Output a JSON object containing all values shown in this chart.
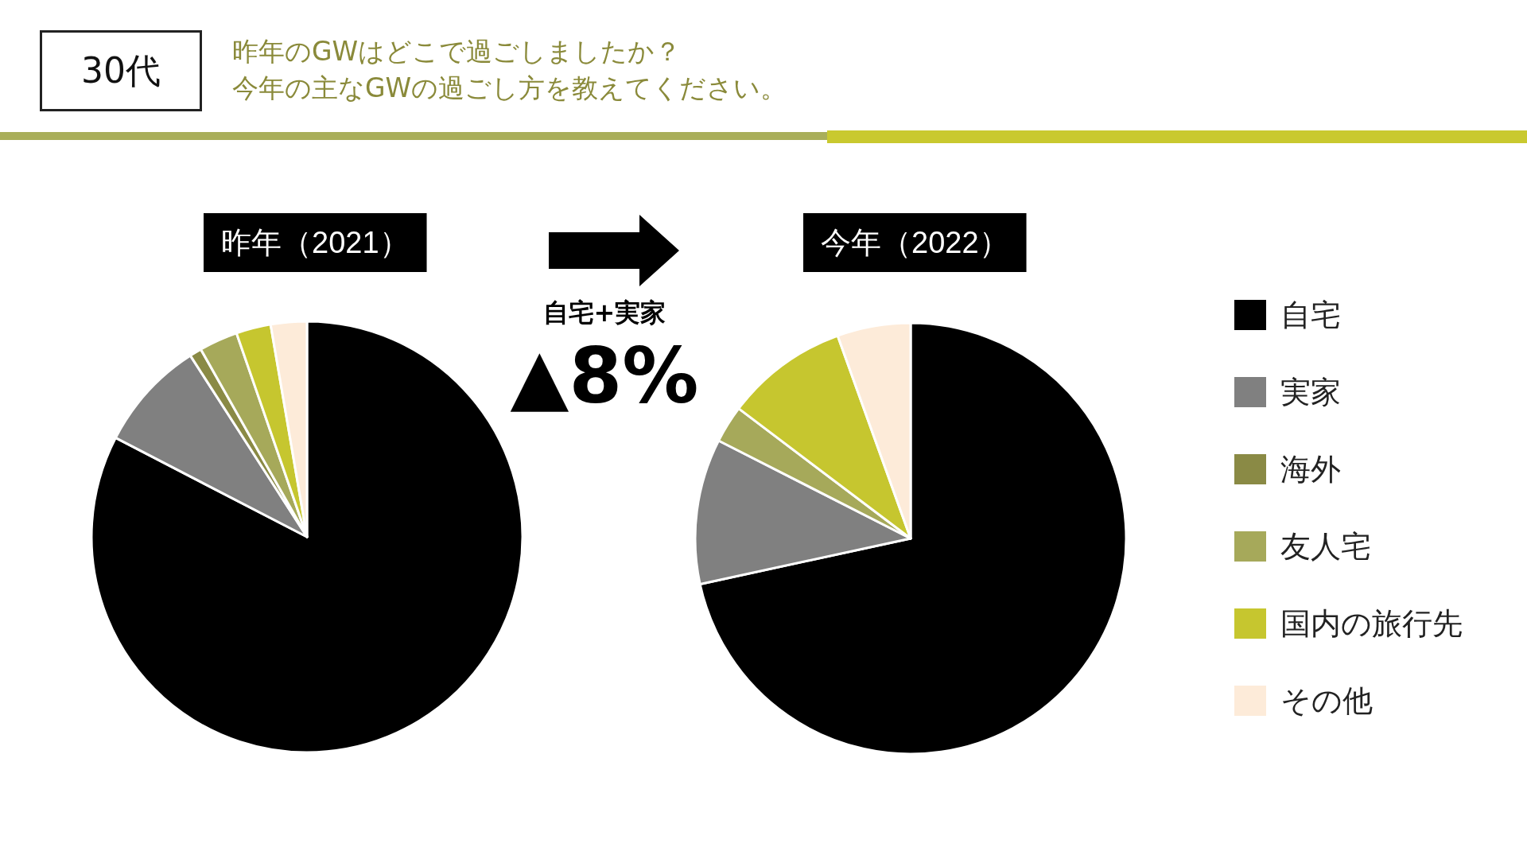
{
  "chart_data": {
    "type": "pie",
    "annotations": [
      "30代",
      "昨年のGWはどこで過ごしましたか？",
      "今年の主なGWの過ごし方を教えてください。",
      "自宅+実家",
      "▲8%"
    ],
    "categories": [
      "自宅",
      "実家",
      "海外",
      "友人宅",
      "国内の旅行先",
      "その他"
    ],
    "colors": [
      "#000000",
      "#808080",
      "#8a8a45",
      "#a6a95a",
      "#c6c62f",
      "#fdebd9"
    ],
    "series": [
      {
        "name": "昨年（2021）",
        "values": [
          82.6,
          8.3,
          0.9,
          2.9,
          2.6,
          2.7
        ]
      },
      {
        "name": "今年（2022）",
        "values": [
          71.6,
          10.9,
          0,
          2.8,
          9.2,
          5.5
        ]
      }
    ],
    "legend": "right"
  }
}
